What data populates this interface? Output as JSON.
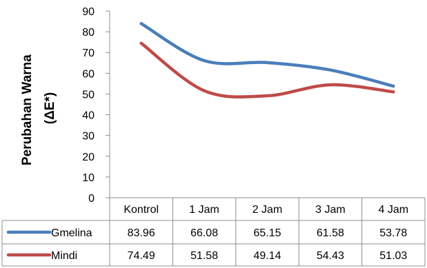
{
  "chart_data": {
    "type": "line",
    "title": "",
    "xlabel": "",
    "ylabel": [
      "Perubahan Warna",
      "(ΔE*)"
    ],
    "ylim": [
      0,
      90
    ],
    "yticks": [
      0,
      10,
      20,
      30,
      40,
      50,
      60,
      70,
      80,
      90
    ],
    "grid": false,
    "legend": "data-table",
    "categories": [
      "Kontrol",
      "1 Jam",
      "2 Jam",
      "3 Jam",
      "4 Jam"
    ],
    "series": [
      {
        "name": "Gmelina",
        "color": "#4A7EBB",
        "values": [
          83.96,
          66.08,
          65.15,
          61.58,
          53.78
        ],
        "labels": [
          "83.96",
          "66.08",
          "65.15",
          "61.58",
          "53.78"
        ]
      },
      {
        "name": "Mindi",
        "color": "#BE4B48",
        "values": [
          74.49,
          51.58,
          49.14,
          54.43,
          51.03
        ],
        "labels": [
          "74.49",
          "51.58",
          "49.14",
          "54.43",
          "51.03"
        ]
      }
    ]
  }
}
